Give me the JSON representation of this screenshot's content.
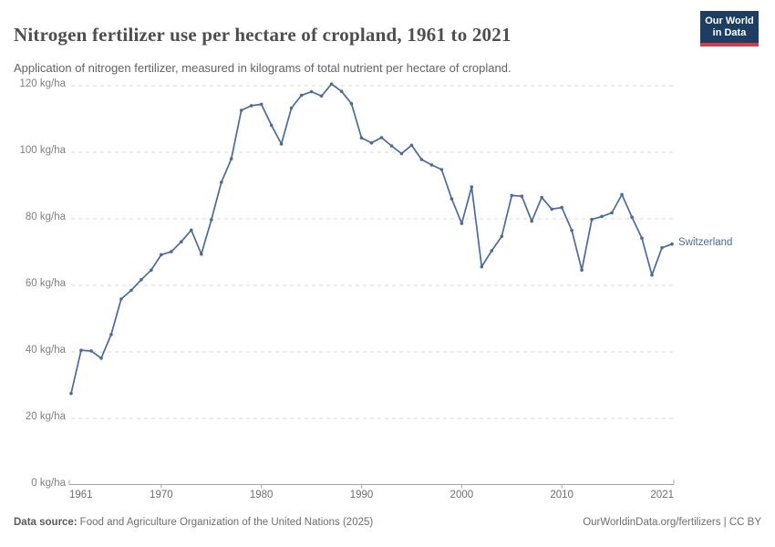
{
  "header": {
    "title": "Nitrogen fertilizer use per hectare of cropland, 1961 to 2021",
    "subtitle": "Application of nitrogen fertilizer, measured in kilograms of total nutrient per hectare of cropland.",
    "logo_line1": "Our World",
    "logo_line2": "in Data"
  },
  "footer": {
    "data_source_label": "Data source:",
    "data_source_text": "Food and Agriculture Organization of the United Nations (2025)",
    "link_text": "OurWorldinData.org/fertilizers | CC BY"
  },
  "colors": {
    "line": "#4c6a9c",
    "grid": "#dadada",
    "axis": "#a6a6a6",
    "logo_navy": "#1d3d63",
    "logo_red": "#d93a4a"
  },
  "chart_data": {
    "type": "line",
    "title": "Nitrogen fertilizer use per hectare of cropland, 1961 to 2021",
    "xlabel": "",
    "ylabel": "",
    "ytick_unit": " kg/ha",
    "ylim": [
      0,
      120
    ],
    "yticks": [
      0,
      20,
      40,
      60,
      80,
      100,
      120
    ],
    "xticks": [
      1961,
      1970,
      1980,
      1990,
      2000,
      2010,
      2021
    ],
    "grid": true,
    "legend_position": "end-of-line",
    "years": [
      1961,
      1962,
      1963,
      1964,
      1965,
      1966,
      1967,
      1968,
      1969,
      1970,
      1971,
      1972,
      1973,
      1974,
      1975,
      1976,
      1977,
      1978,
      1979,
      1980,
      1981,
      1982,
      1983,
      1984,
      1985,
      1986,
      1987,
      1988,
      1989,
      1990,
      1991,
      1992,
      1993,
      1994,
      1995,
      1996,
      1997,
      1998,
      1999,
      2000,
      2001,
      2002,
      2003,
      2004,
      2005,
      2006,
      2007,
      2008,
      2009,
      2010,
      2011,
      2012,
      2013,
      2014,
      2015,
      2016,
      2017,
      2018,
      2019,
      2020,
      2021
    ],
    "series": [
      {
        "name": "Switzerland",
        "values": [
          27.5,
          40.5,
          40.3,
          38.1,
          45.2,
          55.9,
          58.5,
          61.7,
          64.6,
          69.2,
          70.1,
          73.1,
          76.6,
          69.4,
          79.7,
          91.0,
          98.0,
          112.6,
          114.0,
          114.4,
          108.1,
          102.5,
          113.3,
          117.1,
          118.2,
          116.9,
          120.5,
          118.3,
          114.6,
          104.3,
          102.8,
          104.4,
          101.9,
          99.6,
          102.1,
          97.8,
          96.2,
          94.8,
          86.0,
          78.6,
          89.6,
          65.6,
          70.4,
          74.7,
          87.0,
          86.8,
          79.3,
          86.4,
          82.9,
          83.4,
          76.5,
          64.6,
          79.8,
          80.7,
          81.8,
          87.3,
          80.5,
          74.2,
          63.1,
          71.3,
          72.4
        ]
      }
    ]
  }
}
